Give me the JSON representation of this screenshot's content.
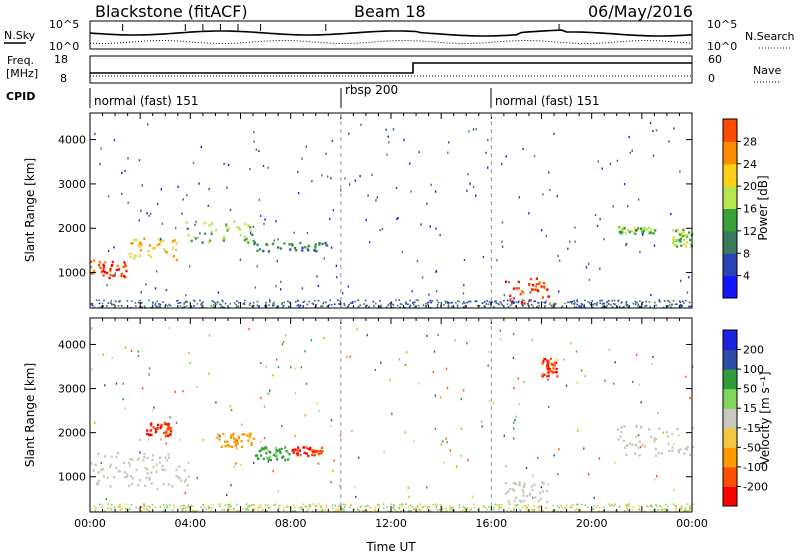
{
  "header": {
    "station": "Blackstone (fitACF)",
    "beam": "Beam 18",
    "date": "06/May/2016"
  },
  "noise_panel": {
    "left_label": "N.Sky",
    "left_ticks": [
      "10^5",
      "10^0"
    ],
    "right_ticks": [
      "10^5",
      "10^0"
    ],
    "right_label": "N.Search"
  },
  "freq_panel": {
    "left_label_1": "Freq.",
    "left_label_2": "[MHz]",
    "left_ticks": [
      "18",
      "8"
    ],
    "right_ticks": [
      "60",
      "0"
    ],
    "right_label": "Nave"
  },
  "cpid": {
    "label": "CPID",
    "segments": [
      {
        "start_hour": 0,
        "end_hour": 10,
        "label": "normal (fast) 151"
      },
      {
        "start_hour": 10,
        "end_hour": 16,
        "label": "rbsp 200"
      },
      {
        "start_hour": 16,
        "end_hour": 24,
        "label": "normal (fast) 151"
      }
    ]
  },
  "colors": {
    "power_scale": [
      "#1414ff",
      "#2a44b8",
      "#3c7a5c",
      "#3aa03a",
      "#b8e64e",
      "#ffd21a",
      "#ff8c00",
      "#ff4a00",
      "#ff0000"
    ],
    "velocity_scale": [
      "#ff0000",
      "#ff5000",
      "#ff9a00",
      "#f2c744",
      "#c8c8c0",
      "#7fd65a",
      "#2f9e3a",
      "#2c4ea8",
      "#1c22dd"
    ]
  },
  "chart_data": [
    {
      "type": "heatmap",
      "panel": "power",
      "ylabel": "Slant Range [km]",
      "ylim": [
        200,
        4600
      ],
      "xlim": [
        0,
        24
      ],
      "yticks": [
        "1000",
        "2000",
        "3000",
        "4000"
      ],
      "colorbar": {
        "label": "Power [dB]",
        "ticks": [
          "4",
          "8",
          "12",
          "16",
          "20",
          "24",
          "28"
        ],
        "range": [
          0,
          32
        ]
      },
      "features": [
        {
          "hours": [
            0.0,
            1.5
          ],
          "range_km": [
            900,
            1300
          ],
          "power_db": 27
        },
        {
          "hours": [
            1.5,
            3.5
          ],
          "range_km": [
            1300,
            1800
          ],
          "power_db": 20
        },
        {
          "hours": [
            3.5,
            6.5
          ],
          "range_km": [
            1700,
            2200
          ],
          "power_db": 14
        },
        {
          "hours": [
            6.5,
            9.5
          ],
          "range_km": [
            1500,
            1700
          ],
          "power_db": 10
        },
        {
          "hours": [
            16.5,
            18.3
          ],
          "range_km": [
            300,
            900
          ],
          "power_db": 28
        },
        {
          "hours": [
            21.0,
            22.5
          ],
          "range_km": [
            1900,
            2050
          ],
          "power_db": 14
        },
        {
          "hours": [
            23.2,
            24.0
          ],
          "range_km": [
            1600,
            2000
          ],
          "power_db": 15
        }
      ]
    },
    {
      "type": "heatmap",
      "panel": "velocity",
      "ylabel": "Slant Range [km]",
      "xlabel": "Time UT",
      "ylim": [
        200,
        4600
      ],
      "xlim": [
        0,
        24
      ],
      "yticks": [
        "1000",
        "2000",
        "3000",
        "4000"
      ],
      "xticks": [
        "00:00",
        "04:00",
        "08:00",
        "12:00",
        "16:00",
        "20:00",
        "00:00"
      ],
      "colorbar": {
        "label": "Velocity [m s⁻¹]",
        "ticks": [
          "200",
          "100",
          "50",
          "15",
          "-15",
          "-50",
          "-100",
          "-200"
        ]
      },
      "features": [
        {
          "hours": [
            0.0,
            4.0
          ],
          "range_km": [
            800,
            1600
          ],
          "velocity": 0
        },
        {
          "hours": [
            2.2,
            3.2
          ],
          "range_km": [
            1950,
            2250
          ],
          "velocity": -200
        },
        {
          "hours": [
            5.0,
            6.5
          ],
          "range_km": [
            1700,
            2000
          ],
          "velocity": -80
        },
        {
          "hours": [
            6.5,
            8.0
          ],
          "range_km": [
            1400,
            1700
          ],
          "velocity": 60
        },
        {
          "hours": [
            8.0,
            9.3
          ],
          "range_km": [
            1500,
            1700
          ],
          "velocity": -200
        },
        {
          "hours": [
            16.5,
            18.3
          ],
          "range_km": [
            400,
            900
          ],
          "velocity": 0
        },
        {
          "hours": [
            18.0,
            18.6
          ],
          "range_km": [
            3300,
            3700
          ],
          "velocity": -200
        },
        {
          "hours": [
            21.0,
            24.0
          ],
          "range_km": [
            1500,
            2200
          ],
          "velocity": 0
        }
      ]
    }
  ]
}
